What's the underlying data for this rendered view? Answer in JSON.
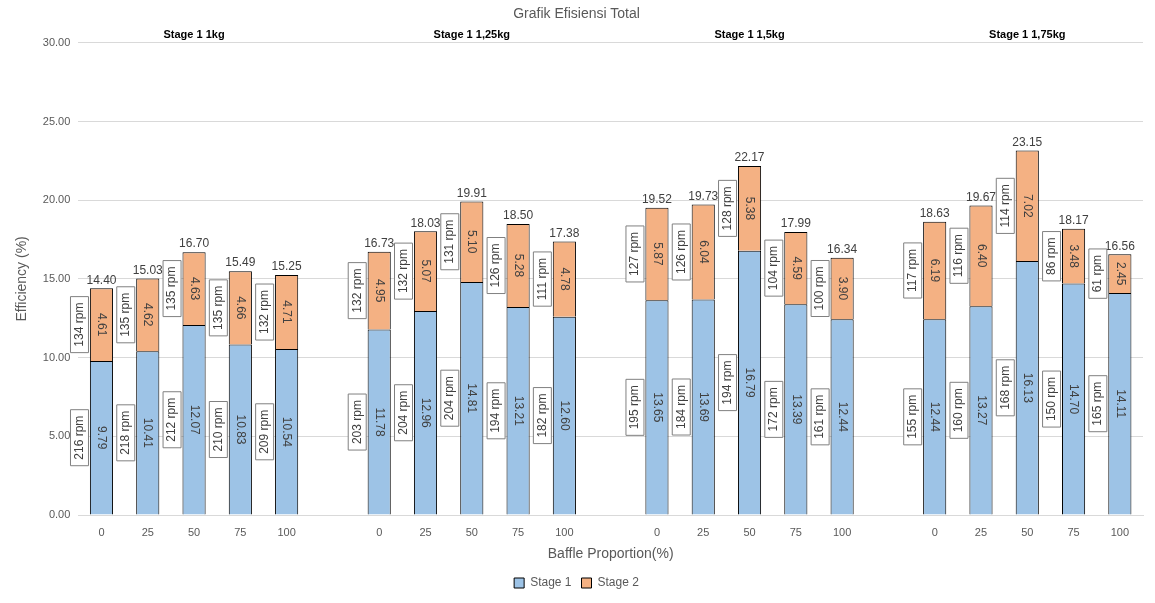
{
  "chart_data": {
    "type": "bar",
    "stacked": true,
    "title": "Grafik Efisiensi Total",
    "xlabel": "Baffle Proportion(%)",
    "ylabel": "Efficiency (%)",
    "categories": [
      "0",
      "25",
      "50",
      "75",
      "100",
      null,
      "0",
      "25",
      "50",
      "75",
      "100",
      null,
      "0",
      "25",
      "50",
      "75",
      "100",
      null,
      "0",
      "25",
      "50",
      "75",
      "100"
    ],
    "series": [
      {
        "name": "Stage 1",
        "color": "#9dc3e6",
        "values": [
          9.79,
          10.41,
          12.07,
          10.83,
          10.54,
          null,
          11.78,
          12.96,
          14.81,
          13.21,
          12.6,
          null,
          13.65,
          13.69,
          16.79,
          13.39,
          12.44,
          null,
          12.44,
          13.27,
          16.13,
          14.7,
          14.11
        ],
        "value_labels": [
          "9.79",
          "10.41",
          "12.07",
          "10.83",
          "10.54",
          null,
          "11.78",
          "12.96",
          "14.81",
          "13.21",
          "12.60",
          null,
          "13.65",
          "13.69",
          "16.79",
          "13.39",
          "12.44",
          null,
          "12.44",
          "13.27",
          "16.13",
          "14.70",
          "14.11"
        ]
      },
      {
        "name": "Stage 2",
        "color": "#f4b183",
        "values": [
          4.61,
          4.62,
          4.63,
          4.66,
          4.71,
          null,
          4.95,
          5.07,
          5.1,
          5.28,
          4.78,
          null,
          5.87,
          6.04,
          5.38,
          4.59,
          3.9,
          null,
          6.19,
          6.4,
          7.02,
          3.48,
          2.45
        ],
        "value_labels": [
          "4.61",
          "4.62",
          "4.63",
          "4.66",
          "4.71",
          null,
          "4.95",
          "5.07",
          "5.10",
          "5.28",
          "4.78",
          null,
          "5.87",
          "6.04",
          "5.38",
          "4.59",
          "3.90",
          null,
          "6.19",
          "6.40",
          "7.02",
          "3.48",
          "2.45"
        ]
      }
    ],
    "totals": [
      "14.40",
      "15.03",
      "16.70",
      "15.49",
      "15.25",
      null,
      "16.73",
      "18.03",
      "19.91",
      "18.50",
      "17.38",
      null,
      "19.52",
      "19.73",
      "22.17",
      "17.99",
      "16.34",
      null,
      "18.63",
      "19.67",
      "23.15",
      "18.17",
      "16.56"
    ],
    "ylim": [
      0,
      30
    ],
    "yticks": [
      {
        "value": 0,
        "label": "0.00"
      },
      {
        "value": 5,
        "label": "5.00"
      },
      {
        "value": 10,
        "label": "10.00"
      },
      {
        "value": 15,
        "label": "15.00"
      },
      {
        "value": 20,
        "label": "20.00"
      },
      {
        "value": 25,
        "label": "25.00"
      },
      {
        "value": 30,
        "label": "30.00"
      }
    ],
    "grid": "y",
    "legend": "bottom",
    "annotations": [
      "Stage 1 1kg",
      "Stage 1 1,25kg",
      "Stage 1 1,5kg",
      "Stage 1 1,75kg",
      "216 rpm",
      "134 rpm",
      "218 rpm",
      "135 rpm",
      "212 rpm",
      "135 rpm",
      "210 rpm",
      "135 rpm",
      "209 rpm",
      "132 rpm",
      "203 rpm",
      "132 rpm",
      "204 rpm",
      "132 rpm",
      "204 rpm",
      "131 rpm",
      "194 rpm",
      "126 rpm",
      "182 rpm",
      "111 rpm",
      "195 rpm",
      "127 rpm",
      "184 rpm",
      "126 rpm",
      "194 rpm",
      "128 rpm",
      "172 rpm",
      "104 rpm",
      "161 rpm",
      "100 rpm",
      "155 rpm",
      "117 rpm",
      "160 rpm",
      "116 rpm",
      "168 rpm",
      "114 rpm",
      "150 rpm",
      "86 rpm",
      "165 rpm",
      "61 rpm"
    ]
  }
}
